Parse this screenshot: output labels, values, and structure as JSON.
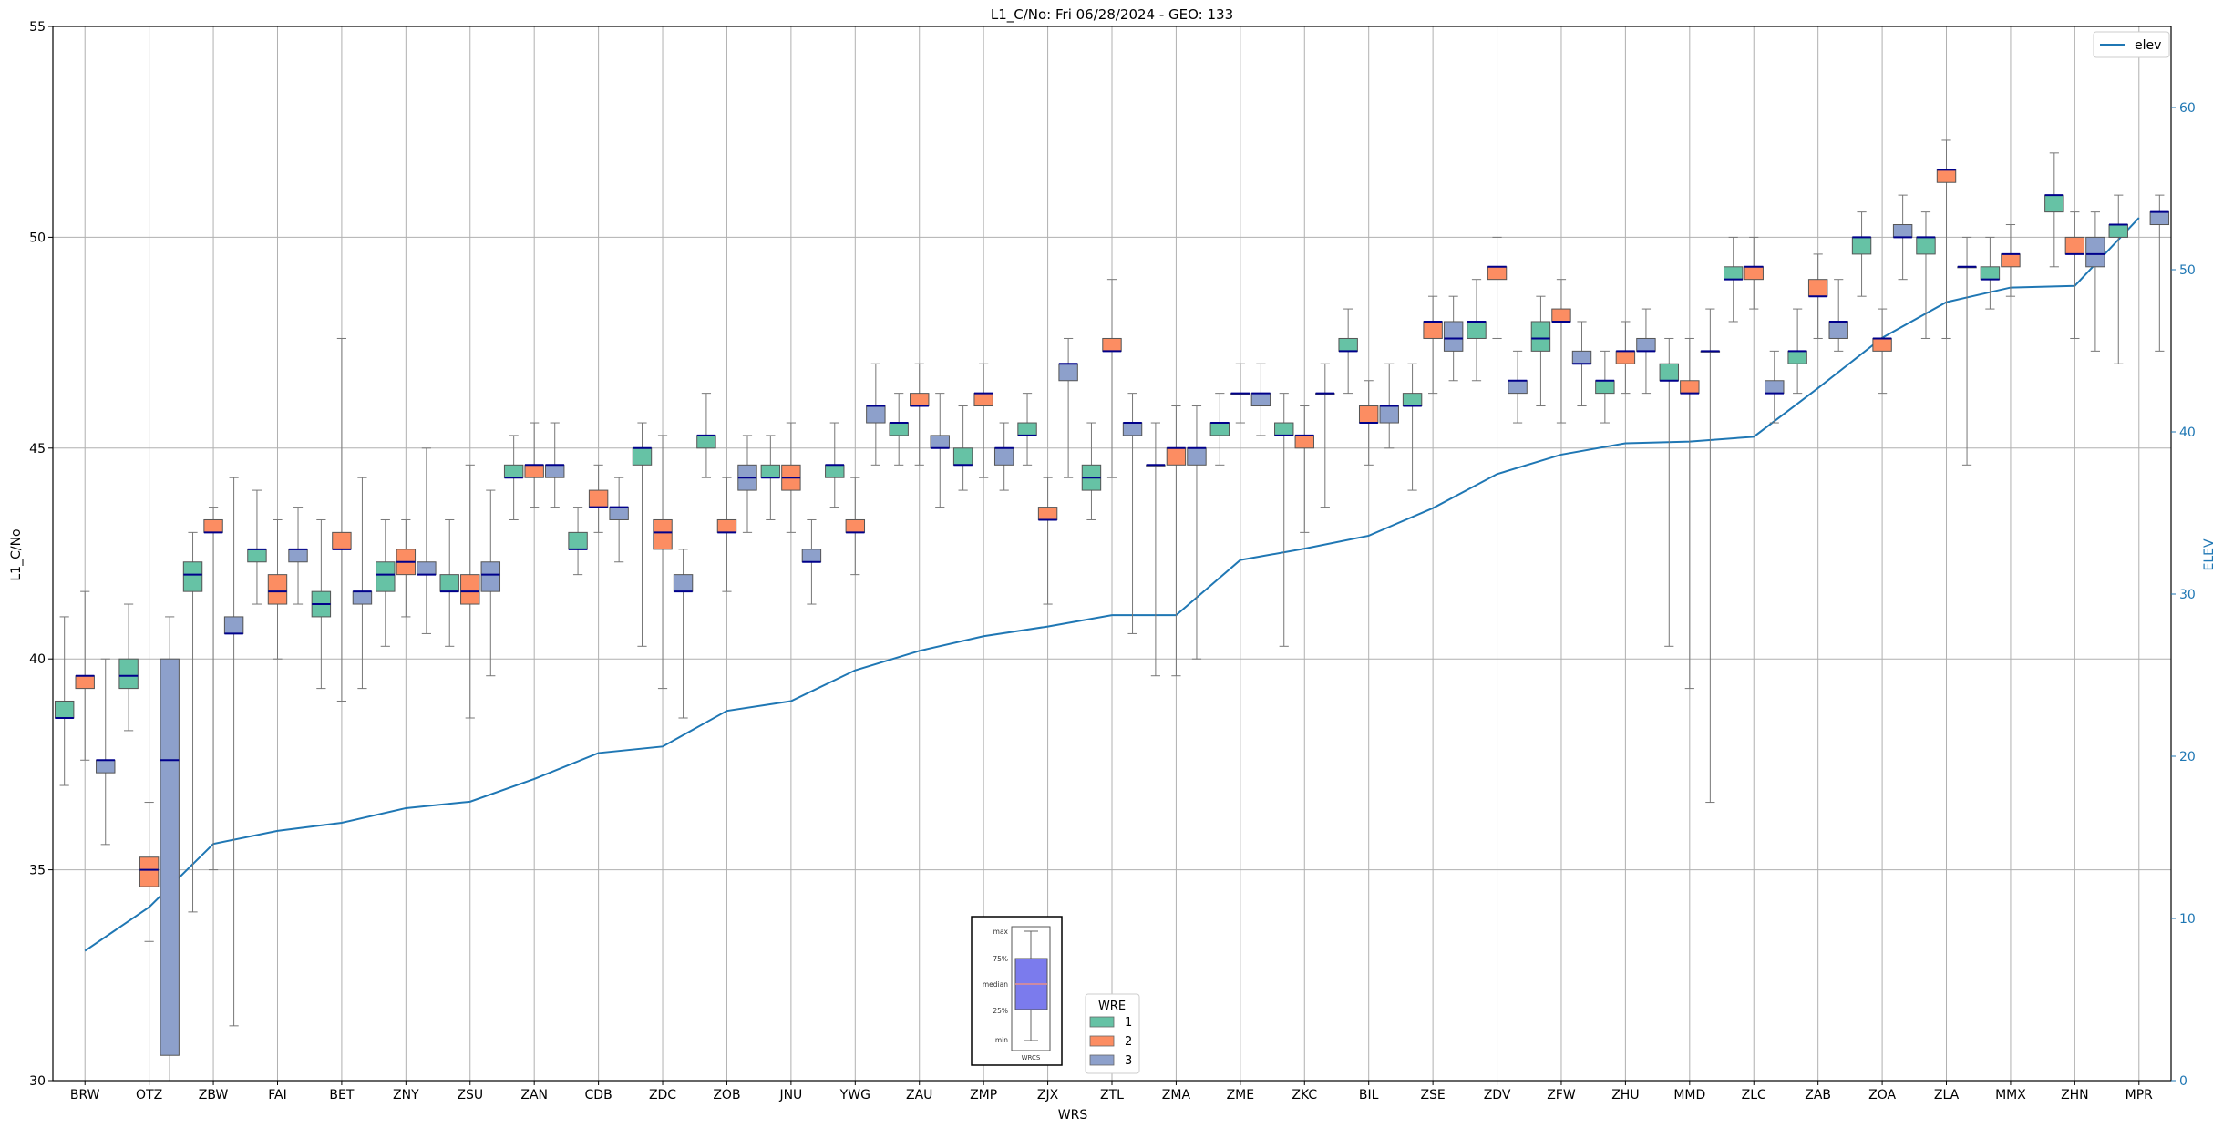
{
  "chart_data": {
    "type": "box",
    "title": "L1_C/No: Fri 06/28/2024 - GEO: 133",
    "xlabel": "WRS",
    "ylabel": "L1_C/No",
    "y2label": "ELEV",
    "ylim": [
      30,
      55
    ],
    "y2lim": [
      0,
      65
    ],
    "yticks": [
      30,
      35,
      40,
      45,
      50,
      55
    ],
    "y2ticks": [
      0,
      10,
      20,
      30,
      40,
      50,
      60
    ],
    "grid": true,
    "categories": [
      "BRW",
      "OTZ",
      "ZBW",
      "FAI",
      "BET",
      "ZNY",
      "ZSU",
      "ZAN",
      "CDB",
      "ZDC",
      "ZOB",
      "JNU",
      "YWG",
      "ZAU",
      "ZMP",
      "ZJX",
      "ZTL",
      "ZMA",
      "ZME",
      "ZKC",
      "BIL",
      "ZSE",
      "ZDV",
      "ZFW",
      "ZHU",
      "MMD",
      "ZLC",
      "ZAB",
      "ZOA",
      "ZLA",
      "MMX",
      "ZHN",
      "MPR"
    ],
    "wre_colors": {
      "1": "#66c2a5",
      "2": "#fc8d62",
      "3": "#8da0cb"
    },
    "boxes": [
      {
        "station": "BRW",
        "wre": 1,
        "min": 37.0,
        "q1": 38.6,
        "median": 38.6,
        "q3": 39.0,
        "max": 41.0
      },
      {
        "station": "BRW",
        "wre": 2,
        "min": 37.6,
        "q1": 39.3,
        "median": 39.6,
        "q3": 39.6,
        "max": 41.6
      },
      {
        "station": "BRW",
        "wre": 3,
        "min": 35.6,
        "q1": 37.3,
        "median": 37.6,
        "q3": 37.6,
        "max": 40.0
      },
      {
        "station": "OTZ",
        "wre": 1,
        "min": 38.3,
        "q1": 39.3,
        "median": 39.6,
        "q3": 40.0,
        "max": 41.3
      },
      {
        "station": "OTZ",
        "wre": 2,
        "min": 33.3,
        "q1": 34.6,
        "median": 35.0,
        "q3": 35.3,
        "max": 36.6
      },
      {
        "station": "OTZ",
        "wre": 3,
        "min": 30.0,
        "q1": 30.6,
        "median": 37.6,
        "q3": 40.0,
        "max": 41.0
      },
      {
        "station": "ZBW",
        "wre": 1,
        "min": 34.0,
        "q1": 41.6,
        "median": 42.0,
        "q3": 42.3,
        "max": 43.0
      },
      {
        "station": "ZBW",
        "wre": 2,
        "min": 35.0,
        "q1": 43.0,
        "median": 43.0,
        "q3": 43.3,
        "max": 43.6
      },
      {
        "station": "ZBW",
        "wre": 3,
        "min": 31.3,
        "q1": 40.6,
        "median": 40.6,
        "q3": 41.0,
        "max": 44.3
      },
      {
        "station": "FAI",
        "wre": 1,
        "min": 41.3,
        "q1": 42.3,
        "median": 42.6,
        "q3": 42.6,
        "max": 44.0
      },
      {
        "station": "FAI",
        "wre": 2,
        "min": 40.0,
        "q1": 41.3,
        "median": 41.6,
        "q3": 42.0,
        "max": 43.3
      },
      {
        "station": "FAI",
        "wre": 3,
        "min": 41.3,
        "q1": 42.3,
        "median": 42.6,
        "q3": 42.6,
        "max": 43.6
      },
      {
        "station": "BET",
        "wre": 1,
        "min": 39.3,
        "q1": 41.0,
        "median": 41.3,
        "q3": 41.6,
        "max": 43.3
      },
      {
        "station": "BET",
        "wre": 2,
        "min": 39.0,
        "q1": 42.6,
        "median": 42.6,
        "q3": 43.0,
        "max": 47.6
      },
      {
        "station": "BET",
        "wre": 3,
        "min": 39.3,
        "q1": 41.3,
        "median": 41.6,
        "q3": 41.6,
        "max": 44.3
      },
      {
        "station": "ZNY",
        "wre": 1,
        "min": 40.3,
        "q1": 41.6,
        "median": 42.0,
        "q3": 42.3,
        "max": 43.3
      },
      {
        "station": "ZNY",
        "wre": 2,
        "min": 41.0,
        "q1": 42.0,
        "median": 42.3,
        "q3": 42.6,
        "max": 43.3
      },
      {
        "station": "ZNY",
        "wre": 3,
        "min": 40.6,
        "q1": 42.0,
        "median": 42.0,
        "q3": 42.3,
        "max": 45.0
      },
      {
        "station": "ZSU",
        "wre": 1,
        "min": 40.3,
        "q1": 41.6,
        "median": 41.6,
        "q3": 42.0,
        "max": 43.3
      },
      {
        "station": "ZSU",
        "wre": 2,
        "min": 38.6,
        "q1": 41.3,
        "median": 41.6,
        "q3": 42.0,
        "max": 44.6
      },
      {
        "station": "ZSU",
        "wre": 3,
        "min": 39.6,
        "q1": 41.6,
        "median": 42.0,
        "q3": 42.3,
        "max": 44.0
      },
      {
        "station": "ZAN",
        "wre": 1,
        "min": 43.3,
        "q1": 44.3,
        "median": 44.3,
        "q3": 44.6,
        "max": 45.3
      },
      {
        "station": "ZAN",
        "wre": 2,
        "min": 43.6,
        "q1": 44.3,
        "median": 44.6,
        "q3": 44.6,
        "max": 45.6
      },
      {
        "station": "ZAN",
        "wre": 3,
        "min": 43.6,
        "q1": 44.3,
        "median": 44.6,
        "q3": 44.6,
        "max": 45.6
      },
      {
        "station": "CDB",
        "wre": 1,
        "min": 42.0,
        "q1": 42.6,
        "median": 42.6,
        "q3": 43.0,
        "max": 43.6
      },
      {
        "station": "CDB",
        "wre": 2,
        "min": 43.0,
        "q1": 43.6,
        "median": 43.6,
        "q3": 44.0,
        "max": 44.6
      },
      {
        "station": "CDB",
        "wre": 3,
        "min": 42.3,
        "q1": 43.3,
        "median": 43.6,
        "q3": 43.6,
        "max": 44.3
      },
      {
        "station": "ZDC",
        "wre": 1,
        "min": 40.3,
        "q1": 44.6,
        "median": 45.0,
        "q3": 45.0,
        "max": 45.6
      },
      {
        "station": "ZDC",
        "wre": 2,
        "min": 39.3,
        "q1": 42.6,
        "median": 43.0,
        "q3": 43.3,
        "max": 45.3
      },
      {
        "station": "ZDC",
        "wre": 3,
        "min": 38.6,
        "q1": 41.6,
        "median": 41.6,
        "q3": 42.0,
        "max": 42.6
      },
      {
        "station": "ZOB",
        "wre": 1,
        "min": 44.3,
        "q1": 45.0,
        "median": 45.3,
        "q3": 45.3,
        "max": 46.3
      },
      {
        "station": "ZOB",
        "wre": 2,
        "min": 41.6,
        "q1": 43.0,
        "median": 43.0,
        "q3": 43.3,
        "max": 44.3
      },
      {
        "station": "ZOB",
        "wre": 3,
        "min": 43.0,
        "q1": 44.0,
        "median": 44.3,
        "q3": 44.6,
        "max": 45.3
      },
      {
        "station": "JNU",
        "wre": 1,
        "min": 43.3,
        "q1": 44.3,
        "median": 44.3,
        "q3": 44.6,
        "max": 45.3
      },
      {
        "station": "JNU",
        "wre": 2,
        "min": 43.0,
        "q1": 44.0,
        "median": 44.3,
        "q3": 44.6,
        "max": 45.6
      },
      {
        "station": "JNU",
        "wre": 3,
        "min": 41.3,
        "q1": 42.3,
        "median": 42.3,
        "q3": 42.6,
        "max": 43.3
      },
      {
        "station": "YWG",
        "wre": 1,
        "min": 43.6,
        "q1": 44.3,
        "median": 44.6,
        "q3": 44.6,
        "max": 45.6
      },
      {
        "station": "YWG",
        "wre": 2,
        "min": 42.0,
        "q1": 43.0,
        "median": 43.0,
        "q3": 43.3,
        "max": 44.3
      },
      {
        "station": "YWG",
        "wre": 3,
        "min": 44.6,
        "q1": 45.6,
        "median": 46.0,
        "q3": 46.0,
        "max": 47.0
      },
      {
        "station": "ZAU",
        "wre": 1,
        "min": 44.6,
        "q1": 45.3,
        "median": 45.6,
        "q3": 45.6,
        "max": 46.3
      },
      {
        "station": "ZAU",
        "wre": 2,
        "min": 44.6,
        "q1": 46.0,
        "median": 46.0,
        "q3": 46.3,
        "max": 47.0
      },
      {
        "station": "ZAU",
        "wre": 3,
        "min": 43.6,
        "q1": 45.0,
        "median": 45.0,
        "q3": 45.3,
        "max": 46.3
      },
      {
        "station": "ZMP",
        "wre": 1,
        "min": 44.0,
        "q1": 44.6,
        "median": 44.6,
        "q3": 45.0,
        "max": 46.0
      },
      {
        "station": "ZMP",
        "wre": 2,
        "min": 44.3,
        "q1": 46.0,
        "median": 46.3,
        "q3": 46.3,
        "max": 47.0
      },
      {
        "station": "ZMP",
        "wre": 3,
        "min": 44.0,
        "q1": 44.6,
        "median": 45.0,
        "q3": 45.0,
        "max": 45.6
      },
      {
        "station": "ZJX",
        "wre": 1,
        "min": 44.6,
        "q1": 45.3,
        "median": 45.3,
        "q3": 45.6,
        "max": 46.3
      },
      {
        "station": "ZJX",
        "wre": 2,
        "min": 41.3,
        "q1": 43.3,
        "median": 43.3,
        "q3": 43.6,
        "max": 44.3
      },
      {
        "station": "ZJX",
        "wre": 3,
        "min": 44.3,
        "q1": 46.6,
        "median": 47.0,
        "q3": 47.0,
        "max": 47.6
      },
      {
        "station": "ZTL",
        "wre": 1,
        "min": 43.3,
        "q1": 44.0,
        "median": 44.3,
        "q3": 44.6,
        "max": 45.6
      },
      {
        "station": "ZTL",
        "wre": 2,
        "min": 44.3,
        "q1": 47.3,
        "median": 47.3,
        "q3": 47.6,
        "max": 49.0
      },
      {
        "station": "ZTL",
        "wre": 3,
        "min": 40.6,
        "q1": 45.3,
        "median": 45.6,
        "q3": 45.6,
        "max": 46.3
      },
      {
        "station": "ZMA",
        "wre": 1,
        "min": 39.6,
        "q1": 44.6,
        "median": 44.6,
        "q3": 44.6,
        "max": 45.6
      },
      {
        "station": "ZMA",
        "wre": 2,
        "min": 39.6,
        "q1": 44.6,
        "median": 45.0,
        "q3": 45.0,
        "max": 46.0
      },
      {
        "station": "ZMA",
        "wre": 3,
        "min": 40.0,
        "q1": 44.6,
        "median": 45.0,
        "q3": 45.0,
        "max": 46.0
      },
      {
        "station": "ZME",
        "wre": 1,
        "min": 44.6,
        "q1": 45.3,
        "median": 45.6,
        "q3": 45.6,
        "max": 46.3
      },
      {
        "station": "ZME",
        "wre": 2,
        "min": 45.6,
        "q1": 46.3,
        "median": 46.3,
        "q3": 46.3,
        "max": 47.0
      },
      {
        "station": "ZME",
        "wre": 3,
        "min": 45.3,
        "q1": 46.0,
        "median": 46.3,
        "q3": 46.3,
        "max": 47.0
      },
      {
        "station": "ZKC",
        "wre": 1,
        "min": 40.3,
        "q1": 45.3,
        "median": 45.3,
        "q3": 45.6,
        "max": 46.3
      },
      {
        "station": "ZKC",
        "wre": 2,
        "min": 43.0,
        "q1": 45.0,
        "median": 45.3,
        "q3": 45.3,
        "max": 46.0
      },
      {
        "station": "ZKC",
        "wre": 3,
        "min": 43.6,
        "q1": 46.3,
        "median": 46.3,
        "q3": 46.3,
        "max": 47.0
      },
      {
        "station": "BIL",
        "wre": 1,
        "min": 46.3,
        "q1": 47.3,
        "median": 47.3,
        "q3": 47.6,
        "max": 48.3
      },
      {
        "station": "BIL",
        "wre": 2,
        "min": 44.6,
        "q1": 45.6,
        "median": 45.6,
        "q3": 46.0,
        "max": 46.6
      },
      {
        "station": "BIL",
        "wre": 3,
        "min": 45.0,
        "q1": 45.6,
        "median": 46.0,
        "q3": 46.0,
        "max": 47.0
      },
      {
        "station": "ZSE",
        "wre": 1,
        "min": 44.0,
        "q1": 46.0,
        "median": 46.0,
        "q3": 46.3,
        "max": 47.0
      },
      {
        "station": "ZSE",
        "wre": 2,
        "min": 46.3,
        "q1": 47.6,
        "median": 48.0,
        "q3": 48.0,
        "max": 48.6
      },
      {
        "station": "ZSE",
        "wre": 3,
        "min": 46.6,
        "q1": 47.3,
        "median": 47.6,
        "q3": 48.0,
        "max": 48.6
      },
      {
        "station": "ZDV",
        "wre": 1,
        "min": 46.6,
        "q1": 47.6,
        "median": 48.0,
        "q3": 48.0,
        "max": 49.0
      },
      {
        "station": "ZDV",
        "wre": 2,
        "min": 47.6,
        "q1": 49.0,
        "median": 49.3,
        "q3": 49.3,
        "max": 50.0
      },
      {
        "station": "ZDV",
        "wre": 3,
        "min": 45.6,
        "q1": 46.3,
        "median": 46.6,
        "q3": 46.6,
        "max": 47.3
      },
      {
        "station": "ZFW",
        "wre": 1,
        "min": 46.0,
        "q1": 47.3,
        "median": 47.6,
        "q3": 48.0,
        "max": 48.6
      },
      {
        "station": "ZFW",
        "wre": 2,
        "min": 45.6,
        "q1": 48.0,
        "median": 48.0,
        "q3": 48.3,
        "max": 49.0
      },
      {
        "station": "ZFW",
        "wre": 3,
        "min": 46.0,
        "q1": 47.0,
        "median": 47.0,
        "q3": 47.3,
        "max": 48.0
      },
      {
        "station": "ZHU",
        "wre": 1,
        "min": 45.6,
        "q1": 46.3,
        "median": 46.6,
        "q3": 46.6,
        "max": 47.3
      },
      {
        "station": "ZHU",
        "wre": 2,
        "min": 46.3,
        "q1": 47.0,
        "median": 47.3,
        "q3": 47.3,
        "max": 48.0
      },
      {
        "station": "ZHU",
        "wre": 3,
        "min": 46.3,
        "q1": 47.3,
        "median": 47.3,
        "q3": 47.6,
        "max": 48.3
      },
      {
        "station": "MMD",
        "wre": 1,
        "min": 40.3,
        "q1": 46.6,
        "median": 46.6,
        "q3": 47.0,
        "max": 47.6
      },
      {
        "station": "MMD",
        "wre": 2,
        "min": 39.3,
        "q1": 46.3,
        "median": 46.3,
        "q3": 46.6,
        "max": 47.6
      },
      {
        "station": "MMD",
        "wre": 3,
        "min": 36.6,
        "q1": 47.3,
        "median": 47.3,
        "q3": 47.3,
        "max": 48.3
      },
      {
        "station": "ZLC",
        "wre": 1,
        "min": 48.0,
        "q1": 49.0,
        "median": 49.0,
        "q3": 49.3,
        "max": 50.0
      },
      {
        "station": "ZLC",
        "wre": 2,
        "min": 48.3,
        "q1": 49.0,
        "median": 49.3,
        "q3": 49.3,
        "max": 50.0
      },
      {
        "station": "ZLC",
        "wre": 3,
        "min": 45.6,
        "q1": 46.3,
        "median": 46.3,
        "q3": 46.6,
        "max": 47.3
      },
      {
        "station": "ZAB",
        "wre": 1,
        "min": 46.3,
        "q1": 47.0,
        "median": 47.3,
        "q3": 47.3,
        "max": 48.3
      },
      {
        "station": "ZAB",
        "wre": 2,
        "min": 47.6,
        "q1": 48.6,
        "median": 48.6,
        "q3": 49.0,
        "max": 49.6
      },
      {
        "station": "ZAB",
        "wre": 3,
        "min": 47.3,
        "q1": 47.6,
        "median": 48.0,
        "q3": 48.0,
        "max": 49.0
      },
      {
        "station": "ZOA",
        "wre": 1,
        "min": 48.6,
        "q1": 49.6,
        "median": 50.0,
        "q3": 50.0,
        "max": 50.6
      },
      {
        "station": "ZOA",
        "wre": 2,
        "min": 46.3,
        "q1": 47.3,
        "median": 47.6,
        "q3": 47.6,
        "max": 48.3
      },
      {
        "station": "ZOA",
        "wre": 3,
        "min": 49.0,
        "q1": 50.0,
        "median": 50.0,
        "q3": 50.3,
        "max": 51.0
      },
      {
        "station": "ZLA",
        "wre": 1,
        "min": 47.6,
        "q1": 49.6,
        "median": 50.0,
        "q3": 50.0,
        "max": 50.6
      },
      {
        "station": "ZLA",
        "wre": 2,
        "min": 47.6,
        "q1": 51.3,
        "median": 51.6,
        "q3": 51.6,
        "max": 52.3
      },
      {
        "station": "ZLA",
        "wre": 3,
        "min": 44.6,
        "q1": 49.3,
        "median": 49.3,
        "q3": 49.3,
        "max": 50.0
      },
      {
        "station": "MMX",
        "wre": 1,
        "min": 48.3,
        "q1": 49.0,
        "median": 49.0,
        "q3": 49.3,
        "max": 50.0
      },
      {
        "station": "MMX",
        "wre": 2,
        "min": 48.6,
        "q1": 49.3,
        "median": 49.6,
        "q3": 49.6,
        "max": 50.3
      },
      {
        "station": "ZHN",
        "wre": 1,
        "min": 49.3,
        "q1": 50.6,
        "median": 51.0,
        "q3": 51.0,
        "max": 52.0
      },
      {
        "station": "ZHN",
        "wre": 2,
        "min": 47.6,
        "q1": 49.6,
        "median": 49.6,
        "q3": 50.0,
        "max": 50.6
      },
      {
        "station": "ZHN",
        "wre": 3,
        "min": 47.3,
        "q1": 49.3,
        "median": 49.6,
        "q3": 50.0,
        "max": 50.6
      },
      {
        "station": "MPR",
        "wre": 1,
        "min": 47.0,
        "q1": 50.0,
        "median": 50.3,
        "q3": 50.3,
        "max": 51.0
      },
      {
        "station": "MPR",
        "wre": 3,
        "min": 47.3,
        "q1": 50.3,
        "median": 50.6,
        "q3": 50.6,
        "max": 51.0
      }
    ],
    "elev_series": {
      "name": "elev",
      "color": "#1f77b4",
      "values": [
        8.0,
        10.7,
        14.6,
        15.4,
        15.9,
        16.8,
        17.2,
        18.6,
        20.2,
        20.6,
        22.8,
        23.4,
        25.3,
        26.5,
        27.4,
        28.0,
        28.7,
        28.7,
        32.1,
        32.8,
        33.6,
        35.3,
        37.4,
        38.6,
        39.3,
        39.4,
        39.7,
        42.7,
        45.8,
        48.0,
        48.9,
        49.0,
        53.2
      ]
    },
    "legend": {
      "title": "WRE",
      "labels": [
        "1",
        "2",
        "3"
      ],
      "placement": "bottom-center"
    },
    "elev_legend": {
      "label": "elev",
      "placement": "top-right"
    },
    "inset_key": {
      "labels": [
        "max",
        "75%",
        "median",
        "25%",
        "min"
      ],
      "xlabel": "WRCS",
      "placement": "bottom-center"
    }
  }
}
